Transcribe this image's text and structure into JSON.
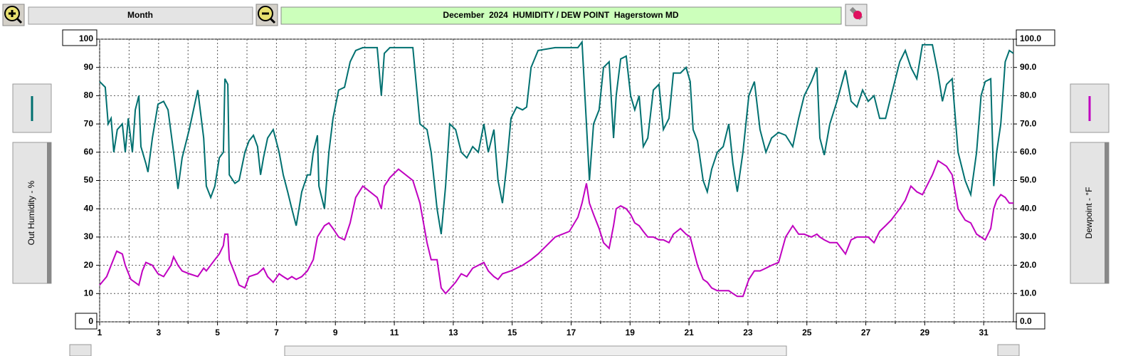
{
  "chart_data": {
    "type": "line",
    "title": "December  2024  HUMIDITY / DEW POINT  Hagerstown MD",
    "period": "Month",
    "xlim": [
      1,
      32.01
    ],
    "xticks": [
      1,
      3,
      5,
      7,
      9,
      11,
      13,
      15,
      17,
      19,
      21,
      23,
      25,
      27,
      29,
      31
    ],
    "ylim": [
      0,
      100
    ],
    "yticks": [
      0,
      10,
      20,
      30,
      40,
      50,
      60,
      70,
      80,
      90,
      100
    ],
    "y2lim": [
      0,
      100
    ],
    "y2ticks": [
      {
        "value": 0,
        "label": "0.0"
      },
      {
        "value": 10,
        "label": "10.0"
      },
      {
        "value": 20,
        "label": "20.0"
      },
      {
        "value": 30,
        "label": "30.0"
      },
      {
        "value": 40,
        "label": "40.0"
      },
      {
        "value": 50,
        "label": "50.0"
      },
      {
        "value": 60,
        "label": "60.0"
      },
      {
        "value": 70,
        "label": "70.0"
      },
      {
        "value": 80,
        "label": "80.0"
      },
      {
        "value": 90,
        "label": "90.0"
      },
      {
        "value": 100,
        "label": "100.0"
      }
    ],
    "grid": true,
    "series": [
      {
        "name": "Out Humidity - %",
        "color": "#007070",
        "axis": "y",
        "x": [
          1.0,
          1.19,
          1.29,
          1.39,
          1.48,
          1.6,
          1.77,
          1.87,
          1.97,
          2.11,
          2.21,
          2.33,
          2.4,
          2.57,
          2.64,
          2.79,
          2.98,
          3.17,
          3.32,
          3.51,
          3.66,
          3.8,
          4.04,
          4.33,
          4.53,
          4.62,
          4.77,
          4.91,
          5.06,
          5.2,
          5.25,
          5.35,
          5.4,
          5.59,
          5.73,
          5.93,
          6.07,
          6.22,
          6.36,
          6.46,
          6.56,
          6.7,
          6.89,
          7.09,
          7.23,
          7.38,
          7.52,
          7.67,
          7.86,
          8.05,
          8.15,
          8.25,
          8.39,
          8.44,
          8.63,
          8.78,
          8.92,
          9.11,
          9.31,
          9.5,
          9.69,
          9.93,
          10.42,
          10.56,
          10.66,
          10.85,
          11.14,
          11.63,
          11.87,
          12.11,
          12.25,
          12.45,
          12.59,
          12.74,
          12.88,
          13.08,
          13.27,
          13.46,
          13.66,
          13.85,
          14.04,
          14.19,
          14.38,
          14.52,
          14.67,
          14.81,
          14.96,
          15.15,
          15.35,
          15.49,
          15.64,
          15.88,
          16.46,
          16.94,
          17.23,
          17.37,
          17.52,
          17.62,
          17.76,
          17.95,
          18.1,
          18.29,
          18.44,
          18.53,
          18.68,
          18.87,
          19.02,
          19.16,
          19.31,
          19.45,
          19.6,
          19.79,
          19.98,
          20.13,
          20.32,
          20.47,
          20.71,
          20.9,
          21.04,
          21.14,
          21.29,
          21.48,
          21.62,
          21.77,
          21.96,
          22.16,
          22.35,
          22.49,
          22.64,
          22.83,
          23.03,
          23.22,
          23.41,
          23.61,
          23.8,
          24.04,
          24.28,
          24.52,
          24.72,
          24.91,
          25.15,
          25.34,
          25.44,
          25.59,
          25.78,
          26.02,
          26.31,
          26.5,
          26.7,
          26.89,
          27.08,
          27.28,
          27.47,
          27.67,
          27.86,
          28.15,
          28.34,
          28.53,
          28.73,
          28.92,
          29.26,
          29.45,
          29.6,
          29.74,
          29.93,
          30.13,
          30.37,
          30.56,
          30.76,
          30.91,
          31.05,
          31.24,
          31.34,
          31.44,
          31.58,
          31.73,
          31.87,
          32.01
        ],
        "values": [
          85,
          83,
          70,
          72,
          60,
          68,
          70,
          60,
          72,
          60,
          75,
          80,
          62,
          56,
          53,
          65,
          77,
          78,
          75,
          60,
          47,
          58,
          68,
          82,
          65,
          48,
          44,
          48,
          58,
          60,
          86,
          84,
          52,
          49,
          50,
          60,
          64,
          66,
          62,
          52,
          58,
          65,
          68,
          60,
          52,
          46,
          40,
          34,
          46,
          52,
          52,
          60,
          66,
          48,
          40,
          60,
          72,
          82,
          83,
          92,
          96,
          97,
          97,
          80,
          95,
          97,
          97,
          97,
          70,
          68,
          60,
          40,
          31,
          48,
          70,
          68,
          60,
          58,
          62,
          60,
          70,
          60,
          68,
          50,
          42,
          55,
          72,
          76,
          75,
          76,
          90,
          96,
          97,
          97,
          97,
          99,
          70,
          50,
          70,
          75,
          90,
          92,
          65,
          80,
          93,
          94,
          80,
          75,
          80,
          62,
          65,
          82,
          84,
          68,
          72,
          88,
          88,
          90,
          85,
          68,
          64,
          50,
          46,
          54,
          60,
          62,
          70,
          56,
          46,
          60,
          80,
          85,
          68,
          60,
          65,
          67,
          66,
          62,
          72,
          80,
          85,
          90,
          65,
          59,
          70,
          78,
          89,
          78,
          76,
          82,
          78,
          80,
          72,
          72,
          80,
          92,
          96,
          90,
          86,
          98,
          98,
          88,
          78,
          84,
          86,
          60,
          50,
          45,
          60,
          80,
          85,
          86,
          48,
          60,
          70,
          92,
          96,
          95
        ]
      },
      {
        "name": "Dewpoint - °F",
        "color": "#c000c0",
        "axis": "y2",
        "x": [
          1.0,
          1.24,
          1.39,
          1.58,
          1.77,
          1.87,
          2.06,
          2.33,
          2.45,
          2.57,
          2.79,
          2.98,
          3.17,
          3.42,
          3.51,
          3.66,
          3.8,
          4.04,
          4.33,
          4.53,
          4.62,
          4.91,
          5.06,
          5.2,
          5.25,
          5.35,
          5.4,
          5.59,
          5.73,
          5.93,
          6.07,
          6.36,
          6.56,
          6.7,
          6.89,
          7.09,
          7.23,
          7.38,
          7.52,
          7.67,
          7.86,
          8.05,
          8.25,
          8.39,
          8.63,
          8.78,
          8.92,
          9.11,
          9.31,
          9.5,
          9.69,
          9.93,
          10.42,
          10.56,
          10.66,
          10.85,
          11.14,
          11.63,
          11.87,
          12.11,
          12.25,
          12.45,
          12.59,
          12.74,
          13.08,
          13.27,
          13.46,
          13.66,
          13.85,
          14.04,
          14.19,
          14.38,
          14.52,
          14.67,
          14.96,
          15.35,
          15.64,
          15.88,
          16.46,
          16.94,
          17.23,
          17.37,
          17.52,
          17.62,
          17.76,
          17.95,
          18.1,
          18.29,
          18.44,
          18.53,
          18.68,
          18.87,
          19.02,
          19.16,
          19.31,
          19.45,
          19.6,
          19.79,
          19.98,
          20.13,
          20.32,
          20.47,
          20.71,
          20.9,
          21.04,
          21.14,
          21.29,
          21.48,
          21.62,
          21.77,
          21.96,
          22.16,
          22.35,
          22.49,
          22.64,
          22.83,
          23.03,
          23.22,
          23.41,
          23.61,
          23.8,
          24.04,
          24.28,
          24.52,
          24.72,
          24.91,
          25.15,
          25.34,
          25.44,
          25.59,
          25.78,
          26.02,
          26.31,
          26.5,
          26.7,
          26.89,
          27.08,
          27.28,
          27.47,
          27.67,
          27.86,
          28.15,
          28.34,
          28.53,
          28.73,
          28.92,
          29.26,
          29.45,
          29.6,
          29.74,
          29.93,
          30.13,
          30.37,
          30.56,
          30.76,
          30.91,
          31.05,
          31.24,
          31.34,
          31.44,
          31.58,
          31.73,
          31.87,
          32.01
        ],
        "values": [
          13,
          16,
          20,
          25,
          24,
          20,
          15,
          13,
          18,
          21,
          20,
          17,
          16,
          20,
          23,
          20,
          18,
          17,
          16,
          19,
          18,
          22,
          24,
          27,
          31,
          31,
          22,
          17,
          13,
          12,
          16,
          17,
          19,
          16,
          14,
          17,
          16,
          15,
          16,
          15,
          16,
          18,
          22,
          30,
          34,
          35,
          33,
          30,
          29,
          35,
          44,
          48,
          44,
          40,
          48,
          51,
          54,
          50,
          42,
          28,
          22,
          22,
          12,
          10,
          14,
          17,
          16,
          19,
          20,
          21,
          18,
          16,
          15,
          17,
          18,
          20,
          22,
          24,
          30,
          32,
          37,
          42,
          49,
          42,
          38,
          33,
          28,
          26,
          34,
          40,
          41,
          40,
          38,
          35,
          34,
          32,
          30,
          30,
          29,
          29,
          28,
          31,
          33,
          31,
          30,
          26,
          20,
          15,
          14,
          12,
          11,
          11,
          11,
          10,
          9,
          9,
          15,
          18,
          18,
          19,
          20,
          21,
          30,
          34,
          31,
          31,
          30,
          31,
          30,
          29,
          28,
          28,
          24,
          29,
          30,
          30,
          30,
          28,
          32,
          34,
          36,
          40,
          43,
          48,
          46,
          45,
          52,
          57,
          56,
          55,
          52,
          40,
          36,
          35,
          31,
          30,
          29,
          33,
          40,
          43,
          45,
          44,
          42,
          42
        ]
      }
    ]
  }
}
